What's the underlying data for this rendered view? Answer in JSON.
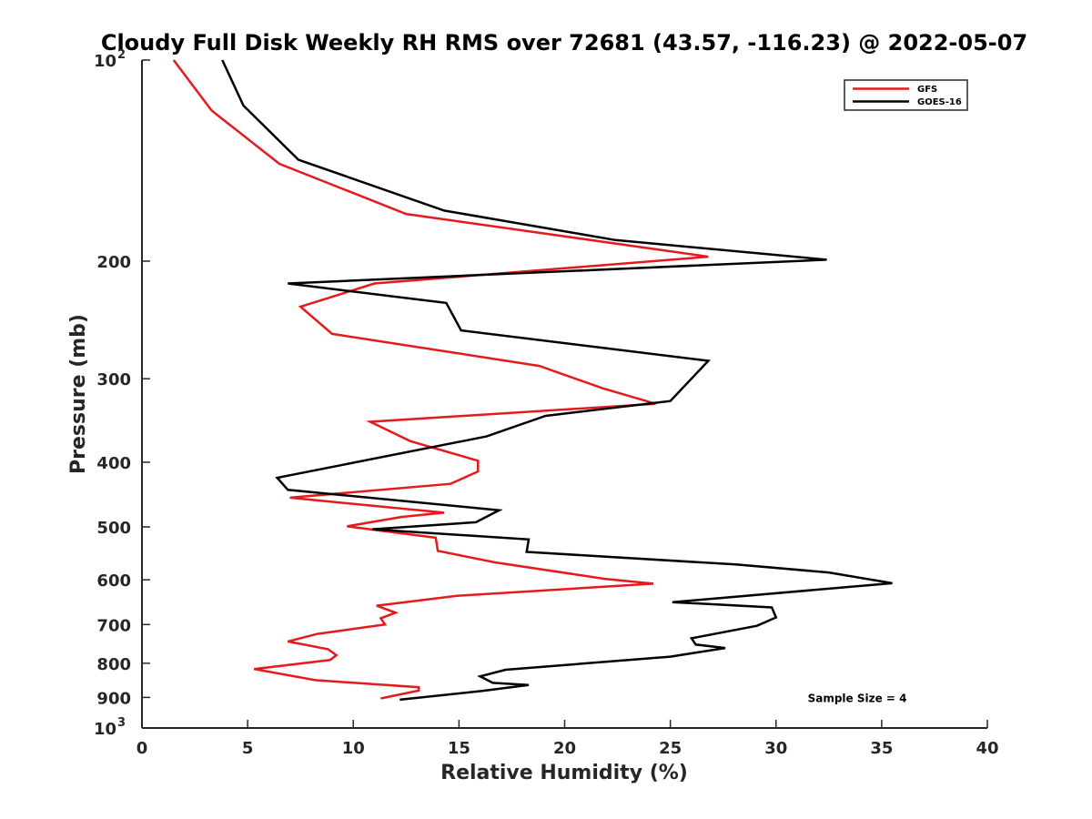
{
  "chart_data": {
    "type": "line",
    "title": "Cloudy Full Disk Weekly RH RMS over 72681 (43.57, -116.23) @ 2022-05-07",
    "xlabel": "Relative Humidity (%)",
    "ylabel": "Pressure (mb)",
    "xlim": [
      0,
      40
    ],
    "ylim": [
      100,
      1000
    ],
    "yscale": "log",
    "y_reversed": true,
    "grid": false,
    "legend_position": "top-right",
    "x_ticks": [
      0,
      5,
      10,
      15,
      20,
      25,
      30,
      35,
      40
    ],
    "x_tick_labels": [
      "0",
      "5",
      "10",
      "15",
      "20",
      "25",
      "30",
      "35",
      "40"
    ],
    "y_ticks": [
      200,
      300,
      400,
      500,
      600,
      700,
      800,
      900
    ],
    "y_tick_labels": [
      "200",
      "300",
      "400",
      "500",
      "600",
      "700",
      "800",
      "900"
    ],
    "y_edge_labels": [
      {
        "value": 100,
        "base": "10",
        "exp": "2"
      },
      {
        "value": 1000,
        "base": "10",
        "exp": "3"
      }
    ],
    "series": [
      {
        "name": "GFS",
        "color": "#e41a1c",
        "points": [
          [
            1.5,
            100
          ],
          [
            3.3,
            119
          ],
          [
            6.5,
            143
          ],
          [
            12.5,
            170
          ],
          [
            26.8,
            197
          ],
          [
            11.0,
            216
          ],
          [
            7.5,
            234
          ],
          [
            9.0,
            257
          ],
          [
            18.8,
            287
          ],
          [
            21.8,
            310
          ],
          [
            24.3,
            327
          ],
          [
            10.8,
            348
          ],
          [
            12.7,
            372
          ],
          [
            15.9,
            398
          ],
          [
            15.9,
            413
          ],
          [
            14.6,
            431
          ],
          [
            7.0,
            452
          ],
          [
            14.3,
            476
          ],
          [
            12.3,
            483
          ],
          [
            9.7,
            499
          ],
          [
            13.9,
            519
          ],
          [
            14.0,
            543
          ],
          [
            16.7,
            565
          ],
          [
            21.9,
            598
          ],
          [
            24.2,
            608
          ],
          [
            14.9,
            634
          ],
          [
            11.1,
            656
          ],
          [
            12.0,
            672
          ],
          [
            11.3,
            685
          ],
          [
            11.5,
            700
          ],
          [
            8.3,
            723
          ],
          [
            6.9,
            742
          ],
          [
            8.8,
            762
          ],
          [
            9.2,
            778
          ],
          [
            8.9,
            791
          ],
          [
            5.3,
            816
          ],
          [
            8.2,
            848
          ],
          [
            13.1,
            869
          ],
          [
            13.1,
            879
          ],
          [
            11.3,
            903
          ]
        ]
      },
      {
        "name": "GOES-16",
        "color": "#000000",
        "points": [
          [
            3.8,
            100
          ],
          [
            4.8,
            117
          ],
          [
            7.4,
            141
          ],
          [
            14.3,
            168
          ],
          [
            22.4,
            186
          ],
          [
            32.4,
            199
          ],
          [
            6.9,
            216
          ],
          [
            14.4,
            231
          ],
          [
            15.1,
            254
          ],
          [
            26.8,
            282
          ],
          [
            25.0,
            324
          ],
          [
            19.1,
            341
          ],
          [
            16.3,
            366
          ],
          [
            6.4,
            422
          ],
          [
            6.9,
            440
          ],
          [
            16.9,
            472
          ],
          [
            15.8,
            492
          ],
          [
            10.9,
            504
          ],
          [
            18.3,
            522
          ],
          [
            18.2,
            545
          ],
          [
            28.1,
            569
          ],
          [
            32.5,
            585
          ],
          [
            35.5,
            607
          ],
          [
            25.1,
            648
          ],
          [
            29.8,
            660
          ],
          [
            30.0,
            683
          ],
          [
            29.1,
            703
          ],
          [
            26.0,
            734
          ],
          [
            26.2,
            750
          ],
          [
            27.6,
            759
          ],
          [
            25.0,
            782
          ],
          [
            17.2,
            818
          ],
          [
            16.0,
            837
          ],
          [
            16.6,
            856
          ],
          [
            18.3,
            862
          ],
          [
            16.1,
            880
          ],
          [
            12.2,
            907
          ]
        ]
      }
    ],
    "annotations": [
      {
        "text": "Sample Size = 4",
        "x": 31.5,
        "y": 900
      }
    ]
  }
}
